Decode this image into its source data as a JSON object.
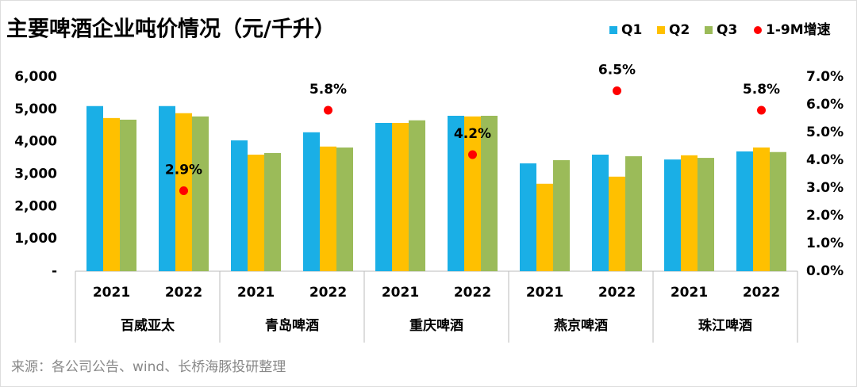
{
  "chart_data": {
    "type": "bar",
    "title": "主要啤酒企业吨价情况（元/千升）",
    "categories": [
      "2021",
      "2022",
      "2021",
      "2022",
      "2021",
      "2022",
      "2021",
      "2022",
      "2021",
      "2022"
    ],
    "groups": [
      "百威亚太",
      "青岛啤酒",
      "重庆啤酒",
      "燕京啤酒",
      "珠江啤酒"
    ],
    "series": [
      {
        "name": "Q1",
        "color": "#1aafe6",
        "values": [
          5100,
          5100,
          4040,
          4290,
          4580,
          4800,
          3330,
          3600,
          3450,
          3700
        ]
      },
      {
        "name": "Q2",
        "color": "#ffc000",
        "values": [
          4730,
          4880,
          3600,
          3850,
          4580,
          4780,
          2700,
          2920,
          3580,
          3820
        ]
      },
      {
        "name": "Q3",
        "color": "#9bbb59",
        "values": [
          4680,
          4780,
          3650,
          3820,
          4660,
          4800,
          3430,
          3550,
          3500,
          3680
        ]
      },
      {
        "name": "1-9M增速",
        "color": "#ff0000",
        "type": "scatter",
        "axis": "y2",
        "values": [
          null,
          2.9,
          null,
          5.8,
          null,
          4.2,
          null,
          6.5,
          null,
          5.8
        ],
        "value_labels": [
          null,
          "2.9%",
          null,
          "5.8%",
          null,
          "4.2%",
          null,
          "6.5%",
          null,
          "5.8%"
        ]
      }
    ],
    "ylim": [
      0,
      6000
    ],
    "yticks": [
      {
        "value": 0,
        "label": "-"
      },
      {
        "value": 1000,
        "label": "1,000"
      },
      {
        "value": 2000,
        "label": "2,000"
      },
      {
        "value": 3000,
        "label": "3,000"
      },
      {
        "value": 4000,
        "label": "4,000"
      },
      {
        "value": 5000,
        "label": "5,000"
      },
      {
        "value": 6000,
        "label": "6,000"
      }
    ],
    "y2lim": [
      0,
      7
    ],
    "y2ticks": [
      {
        "value": 0,
        "label": "0.0%"
      },
      {
        "value": 1,
        "label": "1.0%"
      },
      {
        "value": 2,
        "label": "2.0%"
      },
      {
        "value": 3,
        "label": "3.0%"
      },
      {
        "value": 4,
        "label": "4.0%"
      },
      {
        "value": 5,
        "label": "5.0%"
      },
      {
        "value": 6,
        "label": "6.0%"
      },
      {
        "value": 7,
        "label": "7.0%"
      }
    ],
    "source": "来源：各公司公告、wind、长桥海豚投研整理"
  }
}
